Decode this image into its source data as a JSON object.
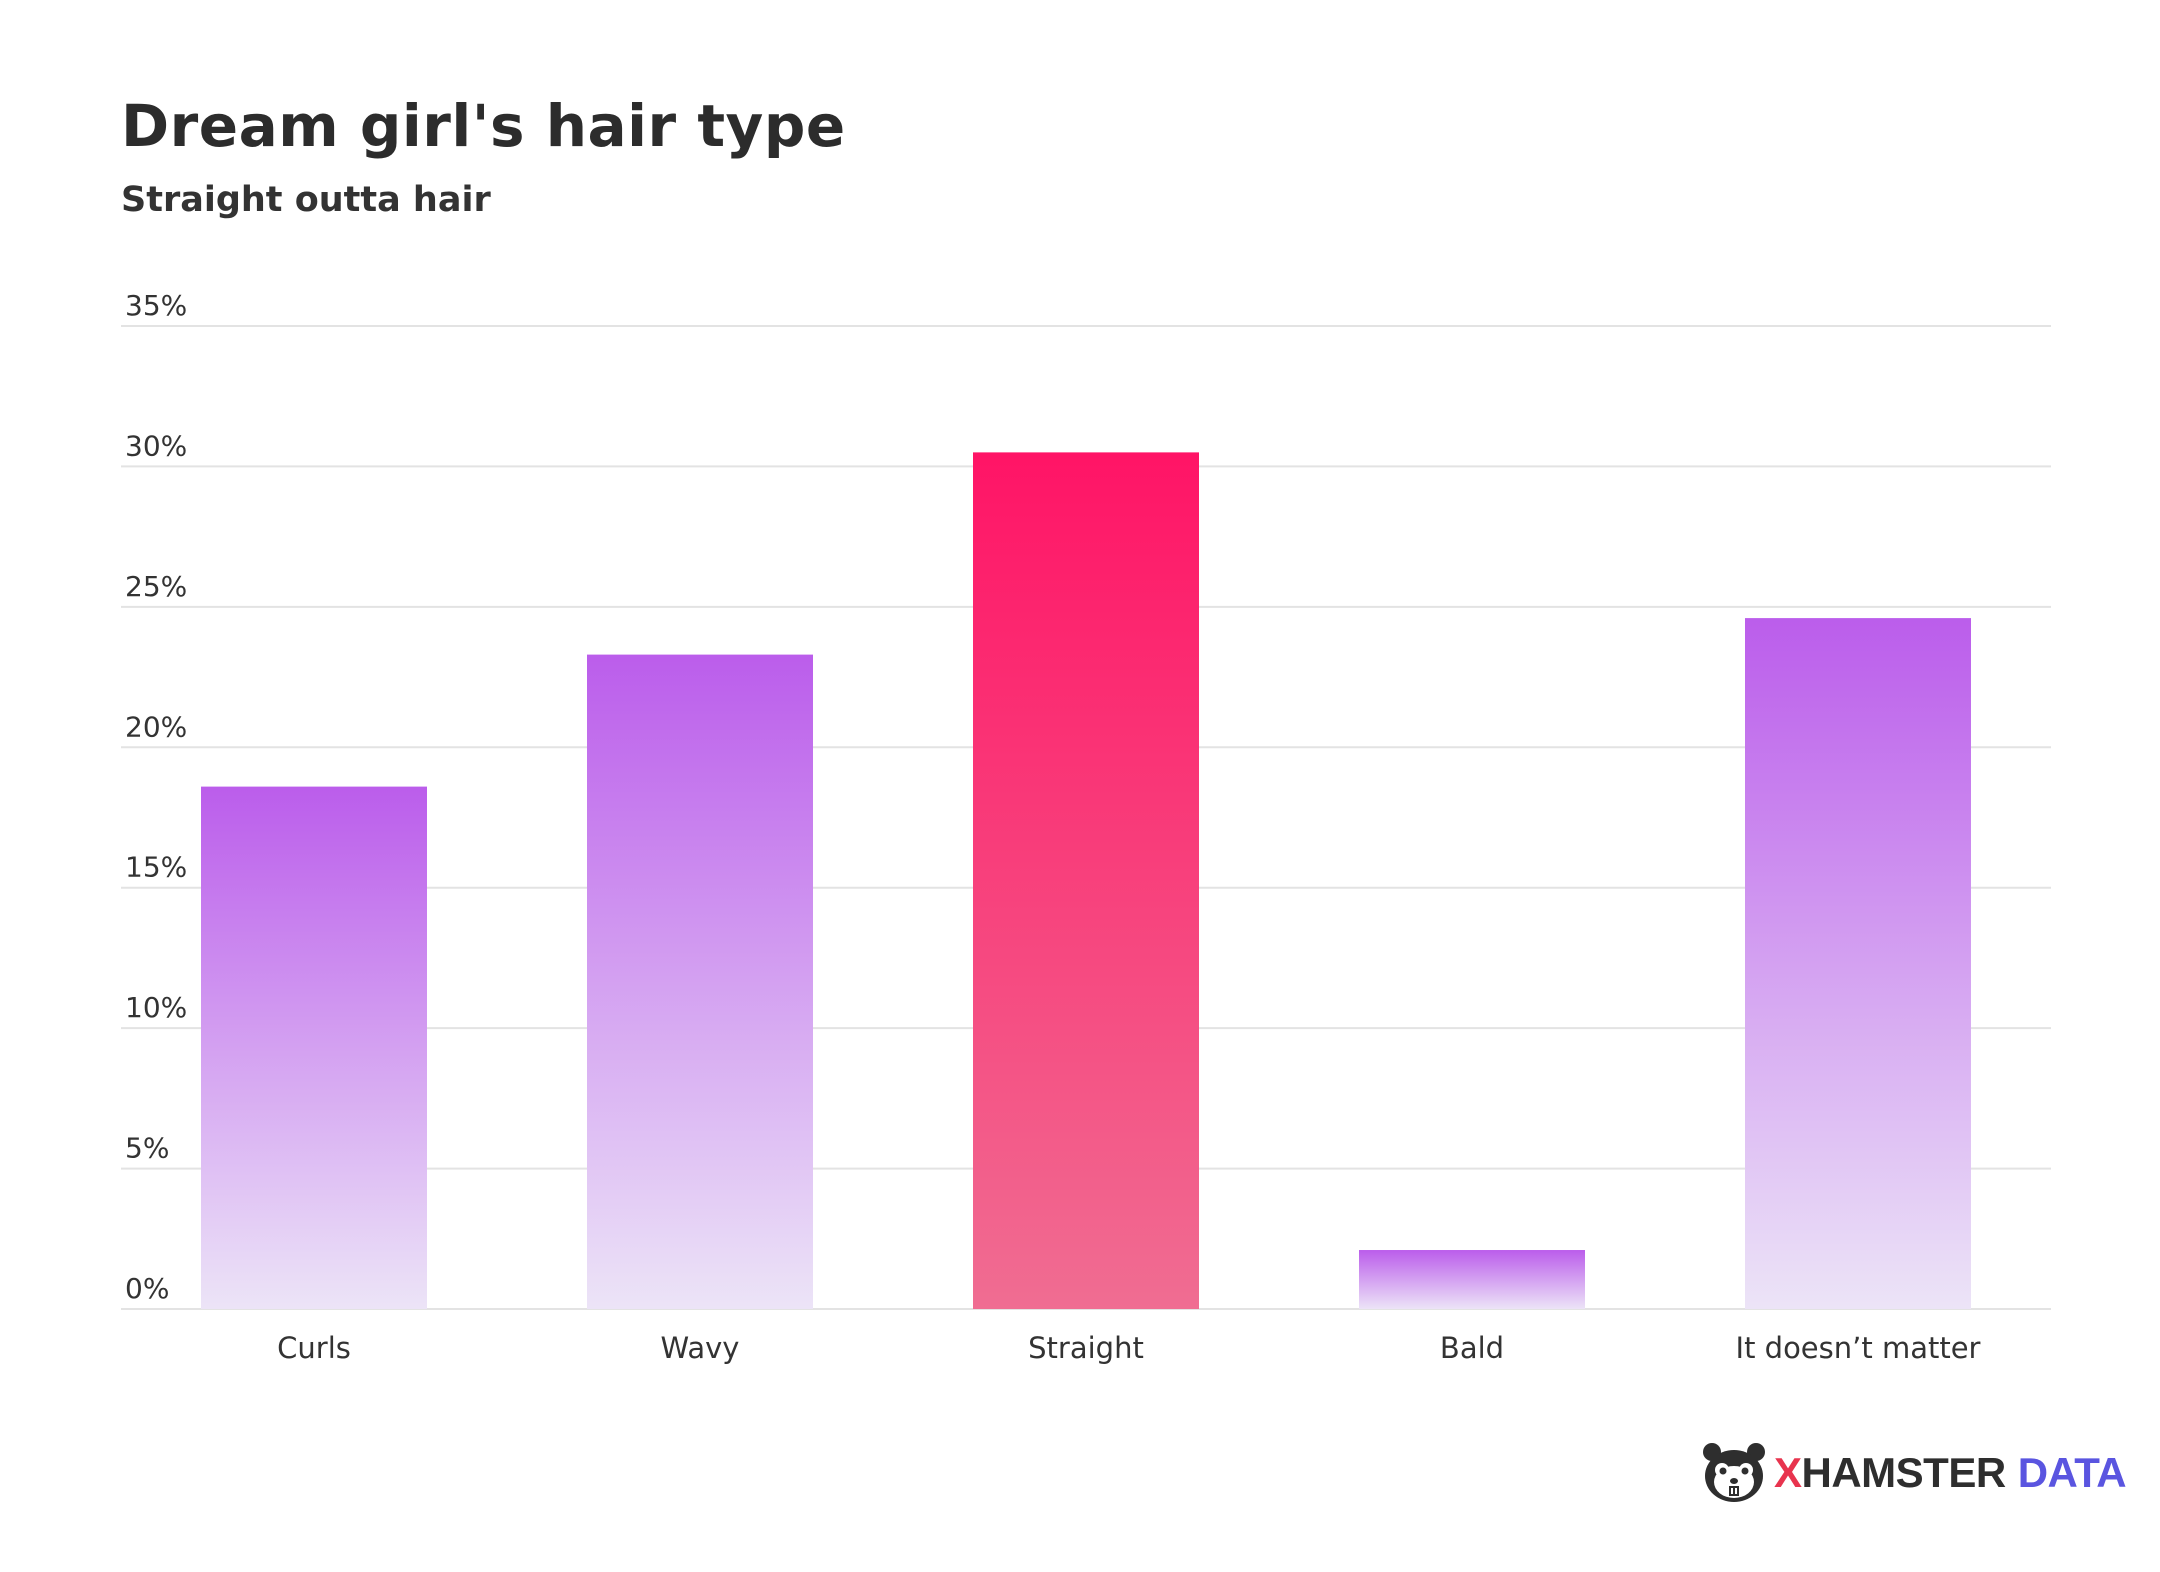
{
  "chart_data": {
    "type": "bar",
    "title": "Dream girl's hair type",
    "subtitle": "Straight outta hair",
    "categories": [
      "Curls",
      "Wavy",
      "Straight",
      "Bald",
      "It doesn’t matter"
    ],
    "values": [
      18.6,
      23.3,
      30.5,
      2.1,
      24.6
    ],
    "highlight_index": 2,
    "y_ticks": [
      "0%",
      "5%",
      "10%",
      "15%",
      "20%",
      "25%",
      "30%",
      "35%"
    ],
    "ylim": [
      0,
      35
    ],
    "grid": true,
    "colors": {
      "bar_top": "#bb5deb",
      "bar_bottom": "#ece4f7",
      "highlight_top": "#ff1466",
      "highlight_bottom": "#f06d92",
      "grid": "#e3e3e3",
      "text": "#333333"
    }
  },
  "brand": {
    "logo_icon": "hamster-icon",
    "x": "X",
    "hamster": "HAMSTER",
    "data": "DATA"
  }
}
